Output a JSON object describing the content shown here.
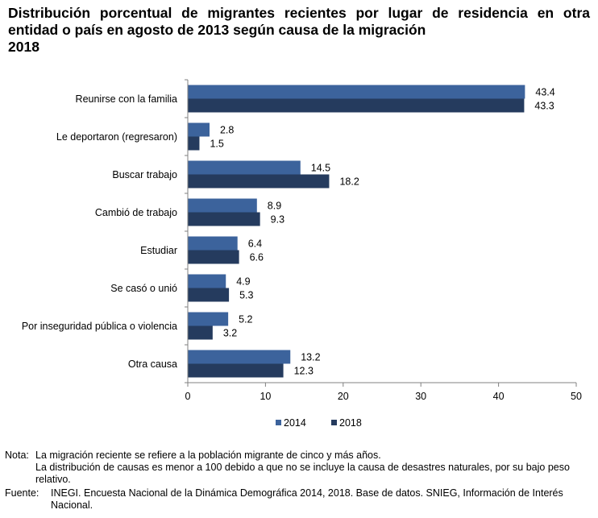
{
  "title": {
    "line1": "Distribución porcentual de migrantes recientes por lugar de residencia en otra",
    "line2": "entidad o país en agosto de 2013 según causa de la migración",
    "line3": "2018"
  },
  "chart_data": {
    "type": "bar",
    "orientation": "horizontal",
    "categories": [
      "Reunirse con la familia",
      "Le deportaron (regresaron)",
      "Buscar trabajo",
      "Cambió de trabajo",
      "Estudiar",
      "Se casó o unió",
      "Por inseguridad pública o violencia",
      "Otra causa"
    ],
    "series": [
      {
        "name": "2014",
        "color": "#3c639c",
        "values": [
          43.4,
          2.8,
          14.5,
          8.9,
          6.4,
          4.9,
          5.2,
          13.2
        ],
        "labels": [
          "43.4",
          "2.8",
          "14.5",
          "8.9",
          "6.4",
          "4.9",
          "5.2",
          "13.2"
        ]
      },
      {
        "name": "2018",
        "color": "#253b5e",
        "values": [
          43.3,
          1.5,
          18.2,
          9.3,
          6.6,
          5.3,
          3.2,
          12.3
        ],
        "labels": [
          "43.3",
          "1.5",
          "18.2",
          "9.3",
          "6.6",
          "5.3",
          "3.2",
          "12.3"
        ]
      }
    ],
    "xlim": [
      0,
      50
    ],
    "xticks": [
      "0",
      "10",
      "20",
      "30",
      "40",
      "50"
    ],
    "xlabel": "",
    "ylabel": "",
    "grid": false,
    "legend_position": "bottom"
  },
  "notes": {
    "label": "Nota:",
    "line1": "La migración reciente se refiere a la población migrante de cinco y más años.",
    "line2": "La distribución de causas es menor a 100 debido a que no se incluye la causa de desastres naturales, por su bajo peso relativo."
  },
  "source": {
    "label": "Fuente:",
    "text": "INEGI. Encuesta Nacional de la Dinámica Demográfica 2014, 2018. Base de datos. SNIEG, Información de Interés Nacional."
  }
}
